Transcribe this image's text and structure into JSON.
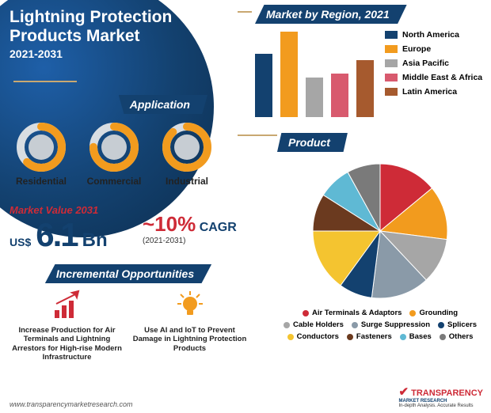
{
  "title": {
    "line1": "Lightning Protection",
    "line2": "Products Market",
    "years": "2021-2031"
  },
  "application": {
    "tag": "Application",
    "items": [
      {
        "label": "Residential",
        "pct": 62
      },
      {
        "label": "Commercial",
        "pct": 75
      },
      {
        "label": "Industrial",
        "pct": 88
      }
    ],
    "ring_fill": "#f29b1e",
    "ring_track": "#d8dde2",
    "ring_inner": "#c7cdd3"
  },
  "market_value": {
    "label": "Market Value 2031",
    "currency": "US$",
    "value": "6.1",
    "unit": "Bn"
  },
  "cagr": {
    "pct": "~10%",
    "label": "CAGR",
    "years": "(2021-2031)"
  },
  "opportunities": {
    "tag": "Incremental Opportunities",
    "items": [
      {
        "icon": "chart-up",
        "icon_color": "#ce2b37",
        "text": "Increase Production for Air Terminals and Lightning Arrestors for High-rise Modern Infrastructure"
      },
      {
        "icon": "bulb",
        "icon_color": "#f29b1e",
        "text": "Use AI and IoT to Prevent Damage in Lightning Protection Products"
      }
    ]
  },
  "region": {
    "tag": "Market by Region, 2021",
    "ylim": 110,
    "bars": [
      {
        "label": "North America",
        "value": 80,
        "color": "#13416f"
      },
      {
        "label": "Europe",
        "value": 108,
        "color": "#f29b1e"
      },
      {
        "label": "Asia Pacific",
        "value": 50,
        "color": "#a6a6a6"
      },
      {
        "label": "Middle East & Africa",
        "value": 55,
        "color": "#d85a6e"
      },
      {
        "label": "Latin America",
        "value": 72,
        "color": "#a65a2e"
      }
    ]
  },
  "product": {
    "tag": "Product",
    "slices": [
      {
        "label": "Air Terminals & Adaptors",
        "value": 14,
        "color": "#ce2b37"
      },
      {
        "label": "Grounding",
        "value": 13,
        "color": "#f29b1e"
      },
      {
        "label": "Cable Holders",
        "value": 11,
        "color": "#a6a6a6"
      },
      {
        "label": "Surge Suppression",
        "value": 14,
        "color": "#8a9aa8"
      },
      {
        "label": "Splicers",
        "value": 8,
        "color": "#13416f"
      },
      {
        "label": "Conductors",
        "value": 15,
        "color": "#f4c430"
      },
      {
        "label": "Fasteners",
        "value": 9,
        "color": "#6b3a1f"
      },
      {
        "label": "Bases",
        "value": 8,
        "color": "#5fb9d4"
      },
      {
        "label": "Others",
        "value": 8,
        "color": "#7a7a7a"
      }
    ]
  },
  "footer": {
    "url": "www.transparencymarketresearch.com",
    "logo_main": "TRANSPARENCY",
    "logo_sub1": "MARKET RESEARCH",
    "logo_sub2": "In-depth Analysis. Accurate Results"
  }
}
